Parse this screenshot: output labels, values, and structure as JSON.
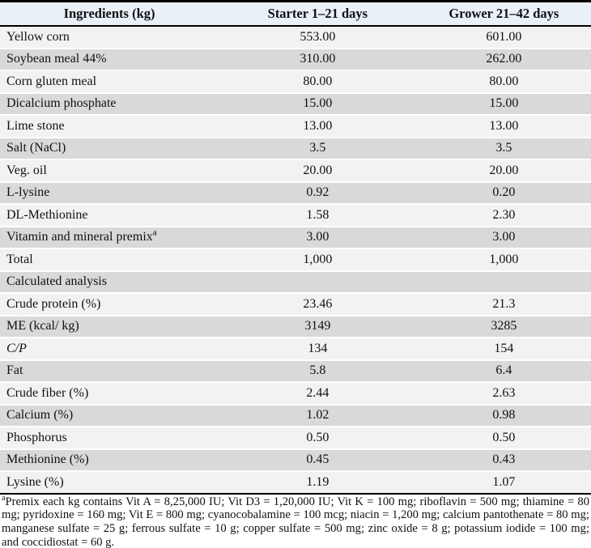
{
  "table": {
    "columns": [
      {
        "id": "ingredients",
        "label": "Ingredients (kg)"
      },
      {
        "id": "starter",
        "label": "Starter 1–21 days"
      },
      {
        "id": "grower",
        "label": "Grower 21–42 days"
      }
    ],
    "rows": [
      {
        "label": "Yellow corn",
        "values": [
          "553.00",
          "601.00"
        ]
      },
      {
        "label": "Soybean meal 44%",
        "values": [
          "310.00",
          "262.00"
        ]
      },
      {
        "label": "Corn gluten meal",
        "values": [
          "80.00",
          "80.00"
        ]
      },
      {
        "label": "Dicalcium phosphate",
        "values": [
          "15.00",
          "15.00"
        ]
      },
      {
        "label": "Lime stone",
        "values": [
          "13.00",
          "13.00"
        ]
      },
      {
        "label": "Salt (NaCl)",
        "values": [
          "3.5",
          "3.5"
        ]
      },
      {
        "label": "Veg. oil",
        "values": [
          "20.00",
          "20.00"
        ]
      },
      {
        "label": "L-lysine",
        "values": [
          "0.92",
          "0.20"
        ]
      },
      {
        "label": "DL-Methionine",
        "values": [
          "1.58",
          "2.30"
        ]
      },
      {
        "label": "Vitamin and mineral premix",
        "label_sup": "a",
        "values": [
          "3.00",
          "3.00"
        ]
      },
      {
        "label": "Total",
        "values": [
          "1,000",
          "1,000"
        ]
      },
      {
        "label": "Calculated analysis",
        "section": true,
        "values": [
          "",
          ""
        ]
      },
      {
        "label": "Crude protein (%)",
        "values": [
          "23.46",
          "21.3"
        ]
      },
      {
        "label": "ME (kcal/ kg)",
        "values": [
          "3149",
          "3285"
        ]
      },
      {
        "label": "C/P",
        "italic": true,
        "values": [
          "134",
          "154"
        ]
      },
      {
        "label": "Fat",
        "values": [
          "5.8",
          "6.4"
        ]
      },
      {
        "label": "Crude fiber (%)",
        "values": [
          "2.44",
          "2.63"
        ]
      },
      {
        "label": "Calcium (%)",
        "values": [
          "1.02",
          "0.98"
        ]
      },
      {
        "label": "Phosphorus",
        "values": [
          "0.50",
          "0.50"
        ]
      },
      {
        "label": "Methionine (%)",
        "values": [
          "0.45",
          "0.43"
        ]
      },
      {
        "label": "Lysine (%)",
        "values": [
          "1.19",
          "1.07"
        ]
      }
    ],
    "colors": {
      "header_bg": "#e9f0f8",
      "row_light": "#f2f2f2",
      "row_dark": "#d9d9d9",
      "border": "#000000"
    }
  },
  "footnote": {
    "sup": "a",
    "text": "Premix each kg contains Vit A = 8,25,000 IU; Vit D3 = 1,20,000 IU; Vit K = 100 mg; riboflavin = 500 mg; thiamine = 80 mg; pyridoxine = 160 mg; Vit E = 800 mg; cyanocobalamine = 100 mcg; niacin = 1,200 mg; calcium pantothenate = 80 mg; manganese sulfate = 25 g; ferrous sulfate = 10 g; copper sulfate = 500 mg; zinc oxide = 8 g; potassium iodide = 100 mg; and coccidiostat = 60 g."
  }
}
